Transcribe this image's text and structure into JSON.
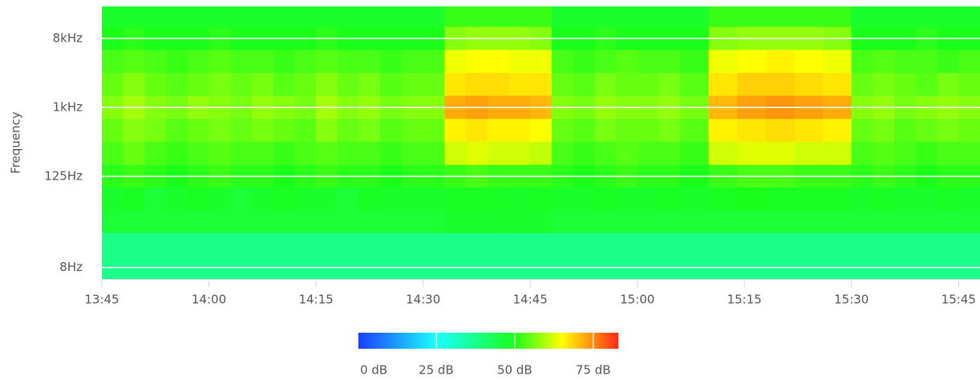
{
  "chart_data": {
    "type": "heatmap",
    "y_label": "Frequency",
    "x": [
      "13:45",
      "13:48",
      "13:51",
      "13:54",
      "13:57",
      "14:00",
      "14:03",
      "14:06",
      "14:09",
      "14:12",
      "14:15",
      "14:18",
      "14:21",
      "14:24",
      "14:27",
      "14:30",
      "14:33",
      "14:36",
      "14:39",
      "14:42",
      "14:45",
      "14:48",
      "14:51",
      "14:54",
      "14:57",
      "15:00",
      "15:03",
      "15:06",
      "15:10",
      "15:14",
      "15:18",
      "15:22",
      "15:26",
      "15:30",
      "15:33",
      "15:36",
      "15:39",
      "15:42",
      "15:45"
    ],
    "xlim": [
      "13:45",
      "15:48"
    ],
    "xticks": [
      "13:45",
      "14:00",
      "14:15",
      "14:30",
      "14:45",
      "15:00",
      "15:15",
      "15:30",
      "15:45"
    ],
    "y": [
      16000,
      8000,
      4000,
      2000,
      1000,
      500,
      250,
      125,
      63,
      31.5,
      16,
      8
    ],
    "ylim": [
      5.66,
      21000
    ],
    "log_y": true,
    "yticks": [
      {
        "value": 8,
        "label": "8Hz"
      },
      {
        "value": 125,
        "label": "125Hz"
      },
      {
        "value": 1000,
        "label": "1kHz"
      },
      {
        "value": 8000,
        "label": "8kHz"
      }
    ],
    "grid": true,
    "z": [
      [
        48,
        48,
        48,
        48,
        48,
        48,
        48,
        48,
        48,
        48,
        48,
        48,
        48,
        48,
        48,
        48,
        52,
        52,
        52,
        52,
        52,
        48,
        48,
        48,
        48,
        48,
        48,
        48,
        52,
        52,
        52,
        52,
        52,
        48,
        48,
        48,
        48,
        48,
        48
      ],
      [
        50,
        51,
        50,
        50,
        50,
        51,
        50,
        50,
        50,
        50,
        51,
        50,
        50,
        50,
        50,
        50,
        57,
        58,
        58,
        58,
        57,
        50,
        50,
        51,
        50,
        50,
        50,
        50,
        57,
        58,
        58,
        58,
        57,
        50,
        50,
        50,
        51,
        50,
        50
      ],
      [
        53,
        54,
        53,
        52,
        53,
        54,
        53,
        53,
        52,
        53,
        54,
        53,
        53,
        52,
        53,
        53,
        64,
        65,
        65,
        64,
        64,
        53,
        52,
        53,
        54,
        53,
        53,
        52,
        64,
        65,
        66,
        65,
        64,
        53,
        54,
        53,
        53,
        52,
        53
      ],
      [
        55,
        57,
        55,
        54,
        55,
        56,
        55,
        56,
        54,
        55,
        57,
        55,
        56,
        54,
        55,
        55,
        67,
        68,
        68,
        67,
        67,
        55,
        54,
        56,
        55,
        55,
        56,
        54,
        67,
        69,
        69,
        68,
        67,
        55,
        56,
        55,
        54,
        56,
        55
      ],
      [
        57,
        59,
        57,
        56,
        58,
        57,
        56,
        58,
        57,
        56,
        59,
        57,
        58,
        56,
        57,
        57,
        72,
        73,
        72,
        72,
        71,
        57,
        56,
        58,
        57,
        57,
        58,
        56,
        71,
        73,
        74,
        73,
        72,
        57,
        58,
        56,
        57,
        58,
        57
      ],
      [
        55,
        57,
        56,
        54,
        55,
        56,
        55,
        56,
        55,
        54,
        57,
        55,
        56,
        54,
        55,
        55,
        66,
        67,
        66,
        66,
        65,
        55,
        54,
        56,
        55,
        55,
        56,
        54,
        66,
        67,
        68,
        67,
        66,
        55,
        56,
        54,
        55,
        56,
        55
      ],
      [
        53,
        55,
        53,
        52,
        53,
        54,
        53,
        53,
        52,
        53,
        54,
        53,
        53,
        52,
        53,
        53,
        62,
        63,
        62,
        62,
        61,
        53,
        52,
        53,
        54,
        53,
        53,
        52,
        62,
        63,
        63,
        62,
        62,
        53,
        54,
        53,
        52,
        53,
        53
      ],
      [
        51,
        52,
        51,
        50,
        51,
        52,
        51,
        51,
        50,
        51,
        52,
        51,
        51,
        50,
        51,
        51,
        52,
        53,
        52,
        52,
        52,
        51,
        50,
        51,
        52,
        51,
        51,
        50,
        52,
        53,
        53,
        52,
        52,
        51,
        52,
        51,
        50,
        51,
        51
      ],
      [
        48,
        49,
        47,
        48,
        49,
        48,
        47,
        48,
        49,
        48,
        48,
        47,
        49,
        48,
        48,
        48,
        49,
        49,
        49,
        48,
        49,
        48,
        48,
        49,
        48,
        48,
        49,
        48,
        49,
        50,
        49,
        49,
        49,
        48,
        49,
        48,
        48,
        49,
        48
      ],
      [
        47,
        47,
        47,
        47,
        47,
        47,
        47,
        47,
        47,
        47,
        47,
        47,
        47,
        47,
        47,
        47,
        48,
        48,
        48,
        48,
        48,
        47,
        47,
        47,
        47,
        47,
        47,
        47,
        47,
        47,
        47,
        47,
        47,
        47,
        47,
        47,
        47,
        47,
        47
      ],
      [
        38,
        38,
        38,
        38,
        38,
        38,
        38,
        38,
        38,
        38,
        38,
        38,
        38,
        38,
        38,
        38,
        38,
        38,
        38,
        38,
        38,
        38,
        38,
        38,
        38,
        38,
        38,
        38,
        38,
        38,
        38,
        38,
        38,
        38,
        38,
        38,
        38,
        38,
        38
      ],
      [
        38,
        38,
        38,
        38,
        38,
        38,
        38,
        38,
        38,
        38,
        38,
        38,
        38,
        38,
        38,
        38,
        38,
        38,
        38,
        38,
        38,
        38,
        38,
        38,
        38,
        38,
        38,
        38,
        38,
        38,
        38,
        38,
        38,
        38,
        38,
        38,
        38,
        38,
        38
      ]
    ],
    "colorscale": [
      [
        0,
        "#1a3cff"
      ],
      [
        25,
        "#1affff"
      ],
      [
        50,
        "#1aff1a"
      ],
      [
        65,
        "#ffff00"
      ],
      [
        83,
        "#ff2a1a"
      ]
    ],
    "colorbar_lim": [
      0,
      83
    ],
    "colorbar_ticks": [
      {
        "value": 0,
        "label": "0 dB"
      },
      {
        "value": 25,
        "label": "25 dB"
      },
      {
        "value": 50,
        "label": "50 dB"
      },
      {
        "value": 75,
        "label": "75 dB"
      }
    ]
  }
}
